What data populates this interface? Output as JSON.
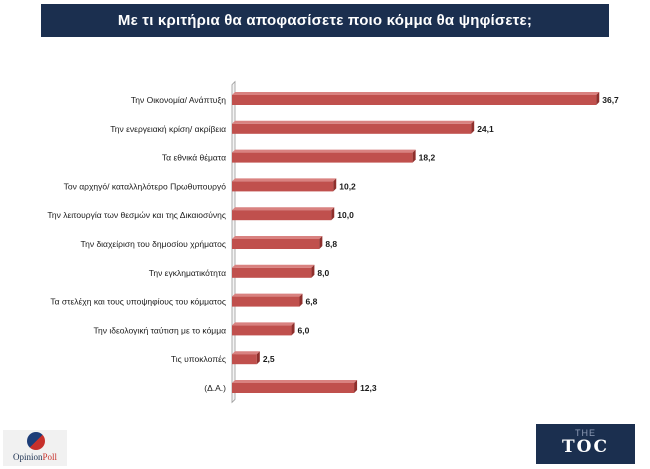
{
  "title": "Με τι κριτήρια θα αποφασίσετε ποιο κόμμα θα ψηφίσετε;",
  "colors": {
    "header_bg": "#1b2f4f",
    "bar": "#c0504d",
    "bar_dark": "#8f2f2c"
  },
  "logos": {
    "opinionpoll": {
      "prefix": "Opinion",
      "suffix": "Poll"
    },
    "toc": {
      "top": "THE",
      "main": "TOC"
    }
  },
  "chart_data": {
    "type": "bar",
    "orientation": "horizontal",
    "title": "Με τι κριτήρια θα αποφασίσετε ποιο κόμμα θα ψηφίσετε;",
    "categories": [
      "Την Οικονομία/ Ανάπτυξη",
      "Την ενεργειακή κρίση/ ακρίβεια",
      "Τα εθνικά θέματα",
      "Τον αρχηγό/ καταλληλότερο Πρωθυπουργό",
      "Την λειτουργία των θεσμών και της Δικαιοσύνης",
      "Την διαχείριση του δημοσίου χρήματος",
      "Την εγκληματικότητα",
      "Τα στελέχη και τους υποψηφίους του κόμματος",
      "Την ιδεολογική ταύτιση με το κόμμα",
      "Τις υποκλοπές",
      "(Δ.Α.)"
    ],
    "values": [
      36.7,
      24.1,
      18.2,
      10.2,
      10.0,
      8.8,
      8.0,
      6.8,
      6.0,
      2.5,
      12.3
    ],
    "value_labels": [
      "36,7",
      "24,1",
      "18,2",
      "10,2",
      "10,0",
      "8,8",
      "8,0",
      "6,8",
      "6,0",
      "2,5",
      "12,3"
    ],
    "xlim": [
      0,
      40
    ],
    "xlabel": "",
    "ylabel": "",
    "grid": false,
    "legend": "none"
  }
}
